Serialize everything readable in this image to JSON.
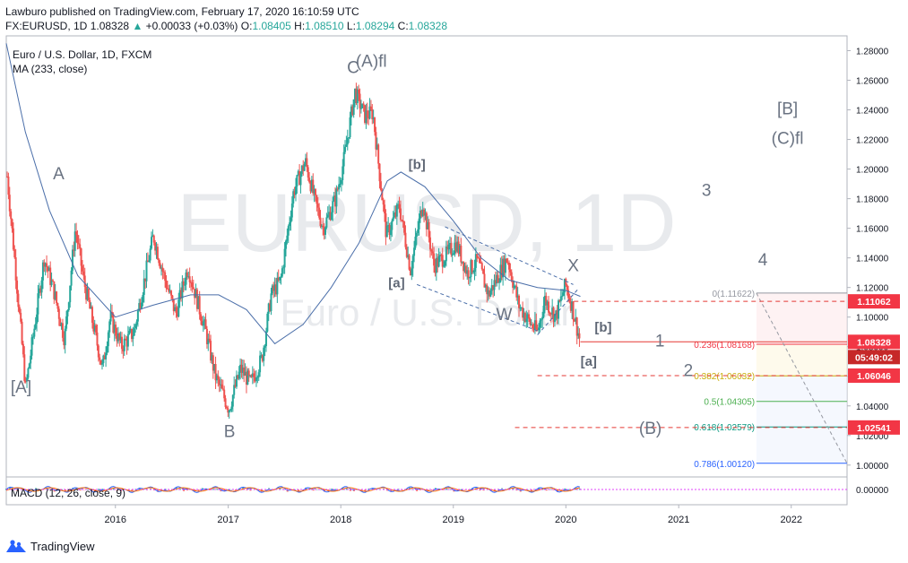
{
  "header": {
    "published_line": "Lawburo published on TradingView.com, February 17, 2020 16:10:59 UTC",
    "symbol": "FX:EURUSD, 1D",
    "price": "1.08328",
    "change": "+0.00033 (+0.03%)",
    "open_label": "O:",
    "open": "1.08405",
    "high_label": "H:",
    "high": "1.08510",
    "low_label": "L:",
    "low": "1.08294",
    "close_label": "C:",
    "close": "1.08328"
  },
  "legend": {
    "title": "Euro / U.S. Dollar, 1D, FXCM",
    "ma": "MA (233, close)",
    "macd": "MACD (12, 26, close, 9)"
  },
  "watermark": {
    "line1": "EURUSD, 1D",
    "line2": "Euro / U.S. Dollar"
  },
  "footer": {
    "brand": "TradingView"
  },
  "colors": {
    "up": "#26a69a",
    "down": "#ef5350",
    "ma": "#4a6ea9",
    "wave_label": "#6a7382",
    "bracket_label": "#5f6775",
    "fib_0": "#9598a1",
    "fib_236": "#f23645",
    "fib_382": "#c8ae0a",
    "fib_5": "#4caf50",
    "fib_618": "#089981",
    "fib_786": "#2962ff",
    "price_tag": "#f23645",
    "countdown_tag": "#c62828",
    "level_line": "#e53935"
  },
  "chart_data": {
    "type": "candlestick",
    "x_ticks": [
      "2016",
      "2017",
      "2018",
      "2019",
      "2020",
      "2021",
      "2022"
    ],
    "y_ticks": [
      "1.28000",
      "1.26000",
      "1.24000",
      "1.22000",
      "1.20000",
      "1.18000",
      "1.16000",
      "1.14000",
      "1.12000",
      "1.10000",
      "1.08000",
      "1.06000",
      "1.04000",
      "1.02000",
      "1.00000"
    ],
    "macd_tick": "0.00000",
    "ylim": [
      0.992,
      1.29
    ],
    "xlim": [
      "2015-01-12",
      "2022-07-01"
    ],
    "price_path": [
      [
        "2015-01-15",
        1.195
      ],
      [
        "2015-02-10",
        1.135
      ],
      [
        "2015-03-16",
        1.052
      ],
      [
        "2015-04-01",
        1.075
      ],
      [
        "2015-05-15",
        1.14
      ],
      [
        "2015-06-15",
        1.118
      ],
      [
        "2015-07-20",
        1.085
      ],
      [
        "2015-08-24",
        1.16
      ],
      [
        "2015-09-20",
        1.125
      ],
      [
        "2015-11-20",
        1.065
      ],
      [
        "2015-12-15",
        1.1
      ],
      [
        "2016-01-20",
        1.08
      ],
      [
        "2016-03-01",
        1.09
      ],
      [
        "2016-05-03",
        1.155
      ],
      [
        "2016-06-10",
        1.125
      ],
      [
        "2016-07-15",
        1.102
      ],
      [
        "2016-08-23",
        1.134
      ],
      [
        "2016-10-20",
        1.09
      ],
      [
        "2016-11-20",
        1.06
      ],
      [
        "2017-01-03",
        1.038
      ],
      [
        "2017-02-10",
        1.065
      ],
      [
        "2017-03-15",
        1.055
      ],
      [
        "2017-04-20",
        1.072
      ],
      [
        "2017-05-20",
        1.115
      ],
      [
        "2017-06-20",
        1.125
      ],
      [
        "2017-08-01",
        1.185
      ],
      [
        "2017-09-08",
        1.205
      ],
      [
        "2017-10-10",
        1.178
      ],
      [
        "2017-11-05",
        1.16
      ],
      [
        "2017-12-15",
        1.18
      ],
      [
        "2018-01-10",
        1.205
      ],
      [
        "2018-02-16",
        1.252
      ],
      [
        "2018-03-20",
        1.236
      ],
      [
        "2018-04-15",
        1.238
      ],
      [
        "2018-05-29",
        1.155
      ],
      [
        "2018-07-10",
        1.175
      ],
      [
        "2018-08-15",
        1.132
      ],
      [
        "2018-09-24",
        1.178
      ],
      [
        "2018-10-30",
        1.135
      ],
      [
        "2018-12-10",
        1.142
      ],
      [
        "2019-01-10",
        1.15
      ],
      [
        "2019-02-15",
        1.13
      ],
      [
        "2019-03-20",
        1.138
      ],
      [
        "2019-04-25",
        1.115
      ],
      [
        "2019-06-25",
        1.14
      ],
      [
        "2019-08-01",
        1.108
      ],
      [
        "2019-09-10",
        1.095
      ],
      [
        "2019-10-01",
        1.09
      ],
      [
        "2019-10-25",
        1.112
      ],
      [
        "2019-11-29",
        1.1
      ],
      [
        "2019-12-31",
        1.122
      ],
      [
        "2020-01-20",
        1.108
      ],
      [
        "2020-02-17",
        1.083
      ]
    ],
    "ma_233": [
      [
        "2015-01-12",
        1.285
      ],
      [
        "2015-03-15",
        1.225
      ],
      [
        "2015-06-01",
        1.172
      ],
      [
        "2015-09-01",
        1.128
      ],
      [
        "2016-01-01",
        1.1
      ],
      [
        "2016-05-01",
        1.108
      ],
      [
        "2016-09-01",
        1.115
      ],
      [
        "2016-12-01",
        1.115
      ],
      [
        "2017-03-01",
        1.105
      ],
      [
        "2017-06-01",
        1.082
      ],
      [
        "2017-09-01",
        1.095
      ],
      [
        "2017-12-01",
        1.12
      ],
      [
        "2018-03-01",
        1.15
      ],
      [
        "2018-06-01",
        1.192
      ],
      [
        "2018-07-15",
        1.198
      ],
      [
        "2018-10-01",
        1.188
      ],
      [
        "2019-01-01",
        1.165
      ],
      [
        "2019-04-01",
        1.14
      ],
      [
        "2019-07-01",
        1.125
      ],
      [
        "2019-10-01",
        1.12
      ],
      [
        "2020-01-01",
        1.118
      ],
      [
        "2020-02-17",
        1.114
      ]
    ],
    "wave_labels": [
      {
        "text": "A",
        "date": "2015-07-01",
        "price": 1.193,
        "style": "wave"
      },
      {
        "text": "[A]",
        "date": "2015-03-01",
        "price": 1.049,
        "style": "wave"
      },
      {
        "text": "B",
        "date": "2017-01-05",
        "price": 1.019,
        "style": "wave"
      },
      {
        "text": "C",
        "date": "2018-02-10",
        "price": 1.265,
        "style": "wave"
      },
      {
        "text": "(A)fl",
        "date": "2018-04-10",
        "price": 1.269,
        "style": "wave"
      },
      {
        "text": "[b]",
        "date": "2018-09-05",
        "price": 1.2,
        "style": "bracket"
      },
      {
        "text": "[a]",
        "date": "2018-07-01",
        "price": 1.12,
        "style": "bracket"
      },
      {
        "text": "W",
        "date": "2019-06-15",
        "price": 1.098,
        "style": "wave"
      },
      {
        "text": "X",
        "date": "2020-01-25",
        "price": 1.131,
        "style": "wave"
      },
      {
        "text": "[b]",
        "date": "2020-05-01",
        "price": 1.09,
        "style": "bracket"
      },
      {
        "text": "[a]",
        "date": "2020-03-15",
        "price": 1.067,
        "style": "bracket"
      },
      {
        "text": "1",
        "date": "2020-11-01",
        "price": 1.08,
        "style": "wave"
      },
      {
        "text": "2",
        "date": "2021-02-01",
        "price": 1.06,
        "style": "wave"
      },
      {
        "text": "3",
        "date": "2021-04-01",
        "price": 1.182,
        "style": "wave"
      },
      {
        "text": "4",
        "date": "2021-10-01",
        "price": 1.135,
        "style": "wave"
      },
      {
        "text": "(B)",
        "date": "2020-10-01",
        "price": 1.021,
        "style": "wave"
      },
      {
        "text": "[B]",
        "date": "2021-12-20",
        "price": 1.237,
        "style": "wave"
      },
      {
        "text": "(C)fl",
        "date": "2021-12-20",
        "price": 1.217,
        "style": "wave"
      }
    ],
    "fib_levels": [
      {
        "label": "0(1.11622)",
        "price": 1.11622,
        "color_key": "fib_0"
      },
      {
        "label": "0.236(1.08168)",
        "price": 1.08168,
        "color_key": "fib_236"
      },
      {
        "label": "0.382(1.06032)",
        "price": 1.06032,
        "color_key": "fib_382"
      },
      {
        "label": "0.5(1.04305)",
        "price": 1.04305,
        "color_key": "fib_5"
      },
      {
        "label": "0.618(1.02579)",
        "price": 1.02579,
        "color_key": "fib_618"
      },
      {
        "label": "0.786(1.00120)",
        "price": 1.0012,
        "color_key": "fib_786"
      }
    ],
    "price_tags": [
      {
        "text": "1.11062",
        "price": 1.11062
      },
      {
        "text": "1.08328",
        "price": 1.08328
      },
      {
        "text": "05:49:02",
        "price": 1.07298,
        "countdown": true
      },
      {
        "text": "1.06046",
        "price": 1.06046
      },
      {
        "text": "1.02541",
        "price": 1.02541
      }
    ],
    "dashed_levels": [
      {
        "price": 1.11062,
        "from": "2020-01-27"
      },
      {
        "price": 1.06046,
        "from": "2019-10-01"
      },
      {
        "price": 1.02541,
        "from": "2019-07-20"
      }
    ]
  }
}
